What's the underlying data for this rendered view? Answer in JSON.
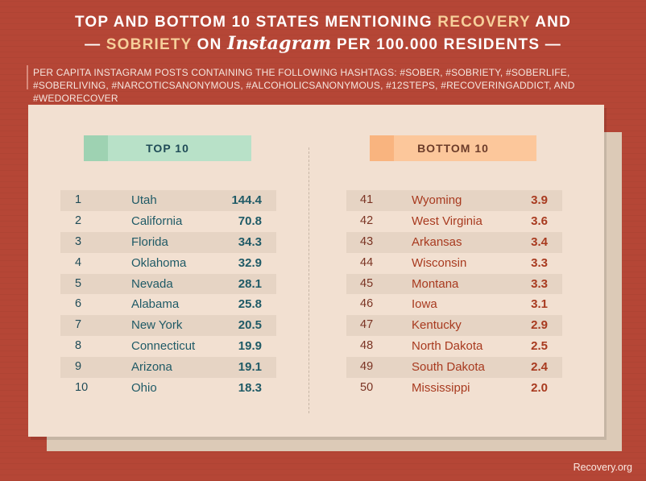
{
  "title": {
    "line1_pre": "Top and Bottom 10 States Mentioning",
    "line1_hl": "Recovery",
    "line1_post": "and",
    "line2_dash_open": "—",
    "line2_hl": "Sobriety",
    "line2_on": "on",
    "line2_brand": "Instagram",
    "line2_post": "per 100.000 residents",
    "line2_dash_close": "—"
  },
  "subtitle": "Per capita Instagram posts containing the following hashtags: #sober, #sobriety, #soberlife, #soberliving, #narcoticsanonymous, #alcoholicsanonymous, #12steps, #recoveringaddict, and #wedorecover",
  "colors": {
    "background": "#b54636",
    "highlight": "#f6cf9a",
    "card": "#f2e0d1",
    "top_color": "#1f5a66",
    "bottom_color": "#a83a1f"
  },
  "chart_data": {
    "type": "table",
    "title": "Top and Bottom 10 States Mentioning Recovery and Sobriety on Instagram per 100.000 residents",
    "top": {
      "heading": "TOP 10",
      "rows": [
        {
          "rank": "1",
          "state": "Utah",
          "value": "144.4"
        },
        {
          "rank": "2",
          "state": "California",
          "value": "70.8"
        },
        {
          "rank": "3",
          "state": "Florida",
          "value": "34.3"
        },
        {
          "rank": "4",
          "state": "Oklahoma",
          "value": "32.9"
        },
        {
          "rank": "5",
          "state": "Nevada",
          "value": "28.1"
        },
        {
          "rank": "6",
          "state": "Alabama",
          "value": "25.8"
        },
        {
          "rank": "7",
          "state": "New York",
          "value": "20.5"
        },
        {
          "rank": "8",
          "state": "Connecticut",
          "value": "19.9"
        },
        {
          "rank": "9",
          "state": "Arizona",
          "value": "19.1"
        },
        {
          "rank": "10",
          "state": "Ohio",
          "value": "18.3"
        }
      ]
    },
    "bottom": {
      "heading": "BOTTOM 10",
      "rows": [
        {
          "rank": "41",
          "state": "Wyoming",
          "value": "3.9"
        },
        {
          "rank": "42",
          "state": "West Virginia",
          "value": "3.6"
        },
        {
          "rank": "43",
          "state": "Arkansas",
          "value": "3.4"
        },
        {
          "rank": "44",
          "state": "Wisconsin",
          "value": "3.3"
        },
        {
          "rank": "45",
          "state": "Montana",
          "value": "3.3"
        },
        {
          "rank": "46",
          "state": "Iowa",
          "value": "3.1"
        },
        {
          "rank": "47",
          "state": "Kentucky",
          "value": "2.9"
        },
        {
          "rank": "48",
          "state": "North Dakota",
          "value": "2.5"
        },
        {
          "rank": "49",
          "state": "South Dakota",
          "value": "2.4"
        },
        {
          "rank": "50",
          "state": "Mississippi",
          "value": "2.0"
        }
      ]
    }
  },
  "source": "Recovery.org"
}
